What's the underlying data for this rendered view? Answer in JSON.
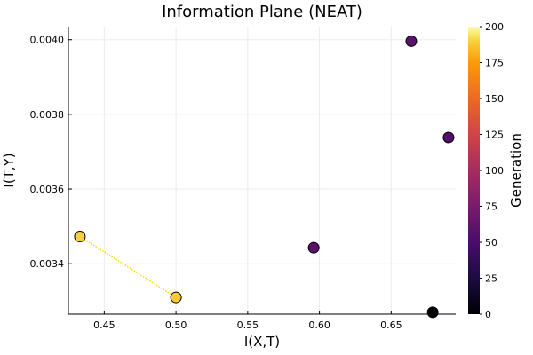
{
  "chart_data": {
    "type": "scatter",
    "title": "Information Plane (NEAT)",
    "xlabel": "I(X,T)",
    "ylabel": "I(T,Y)",
    "xlim": [
      0.425,
      0.695
    ],
    "ylim": [
      0.003265,
      0.004035
    ],
    "xticks": [
      "0.45",
      "0.50",
      "0.55",
      "0.60",
      "0.65"
    ],
    "yticks": [
      "0.0034",
      "0.0036",
      "0.0038",
      "0.0040"
    ],
    "grid": true,
    "colormap": "inferno",
    "colorbar": {
      "label": "Generation",
      "range": [
        0,
        200
      ],
      "ticks": [
        "0",
        "25",
        "50",
        "75",
        "100",
        "125",
        "150",
        "175",
        "200"
      ]
    },
    "points": [
      {
        "x": 0.433,
        "y": 0.003473,
        "generation": 190
      },
      {
        "x": 0.5,
        "y": 0.00331,
        "generation": 188
      },
      {
        "x": 0.596,
        "y": 0.003443,
        "generation": 60
      },
      {
        "x": 0.664,
        "y": 0.003996,
        "generation": 60
      },
      {
        "x": 0.69,
        "y": 0.003738,
        "generation": 55
      },
      {
        "x": 0.679,
        "y": 0.00327,
        "generation": 0
      }
    ],
    "connector": {
      "from": [
        0.433,
        0.003473
      ],
      "to": [
        0.5,
        0.00331
      ],
      "color": "#ffd700",
      "style": "dotted"
    }
  }
}
